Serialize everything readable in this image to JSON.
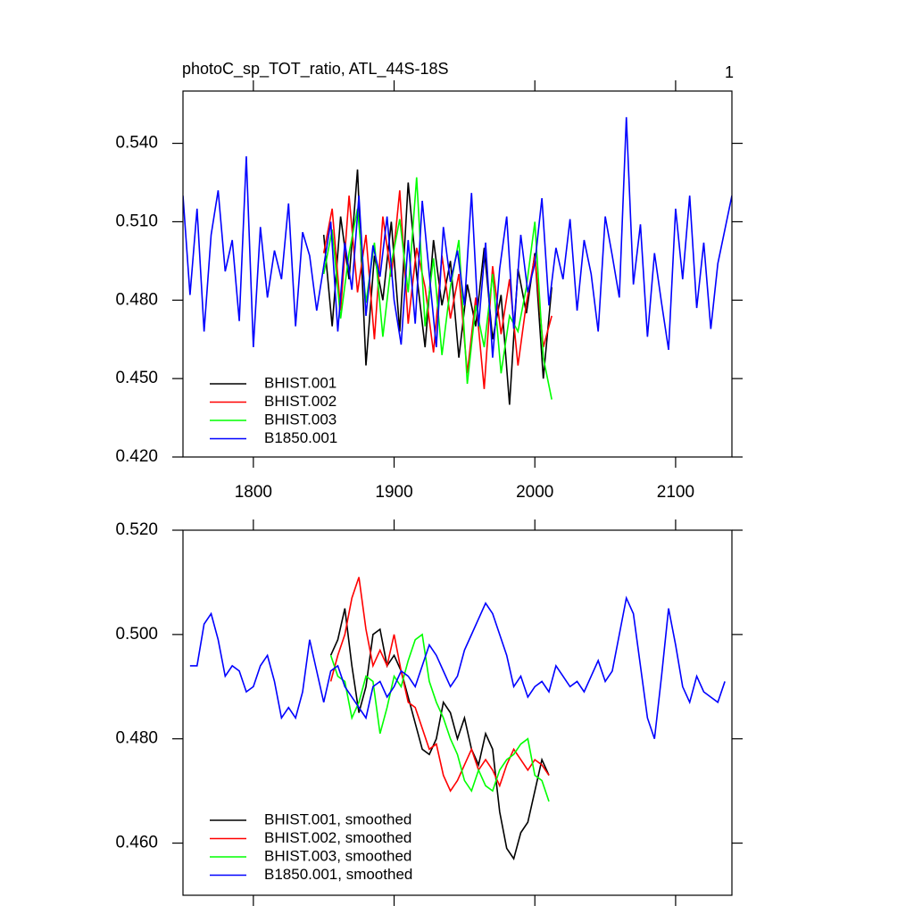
{
  "chart_data": [
    {
      "type": "line",
      "title": "photoC_sp_TOT_ratio, ATL_44S-18S",
      "corner_label": "1",
      "xlim": [
        1750,
        2140
      ],
      "xticks": [
        1800,
        1900,
        2000,
        2100
      ],
      "ylim": [
        0.42,
        0.56
      ],
      "yticks": [
        {
          "value": 0.42,
          "label": "0.420"
        },
        {
          "value": 0.45,
          "label": "0.450"
        },
        {
          "value": 0.48,
          "label": "0.480"
        },
        {
          "value": 0.51,
          "label": "0.510"
        },
        {
          "value": 0.54,
          "label": "0.540"
        }
      ],
      "legend": "lower left",
      "series": [
        {
          "name": "BHIST.001",
          "color": "#000000",
          "x": [
            1850,
            1856,
            1862,
            1868,
            1874,
            1880,
            1886,
            1892,
            1898,
            1904,
            1910,
            1916,
            1922,
            1928,
            1934,
            1940,
            1946,
            1952,
            1958,
            1964,
            1970,
            1976,
            1982,
            1988,
            1994,
            2000,
            2006,
            2012
          ],
          "values": [
            0.505,
            0.47,
            0.512,
            0.488,
            0.53,
            0.455,
            0.497,
            0.48,
            0.51,
            0.468,
            0.525,
            0.49,
            0.462,
            0.503,
            0.478,
            0.495,
            0.458,
            0.486,
            0.47,
            0.5,
            0.465,
            0.482,
            0.44,
            0.492,
            0.475,
            0.498,
            0.45,
            0.485
          ]
        },
        {
          "name": "BHIST.002",
          "color": "#ff0000",
          "x": [
            1850,
            1856,
            1862,
            1868,
            1874,
            1880,
            1886,
            1892,
            1898,
            1904,
            1910,
            1916,
            1922,
            1928,
            1934,
            1940,
            1946,
            1952,
            1958,
            1964,
            1970,
            1976,
            1982,
            1988,
            1994,
            2000,
            2006,
            2012
          ],
          "values": [
            0.498,
            0.515,
            0.476,
            0.52,
            0.483,
            0.505,
            0.465,
            0.512,
            0.489,
            0.522,
            0.471,
            0.5,
            0.485,
            0.46,
            0.497,
            0.473,
            0.49,
            0.452,
            0.481,
            0.446,
            0.493,
            0.467,
            0.488,
            0.455,
            0.479,
            0.497,
            0.462,
            0.474
          ]
        },
        {
          "name": "BHIST.003",
          "color": "#00ff00",
          "x": [
            1850,
            1856,
            1862,
            1868,
            1874,
            1880,
            1886,
            1892,
            1898,
            1904,
            1910,
            1916,
            1922,
            1928,
            1934,
            1940,
            1946,
            1952,
            1958,
            1964,
            1970,
            1976,
            1982,
            1988,
            1994,
            2000,
            2006,
            2012
          ],
          "values": [
            0.49,
            0.507,
            0.473,
            0.498,
            0.515,
            0.479,
            0.502,
            0.466,
            0.494,
            0.511,
            0.483,
            0.527,
            0.47,
            0.496,
            0.459,
            0.485,
            0.503,
            0.448,
            0.478,
            0.462,
            0.49,
            0.452,
            0.474,
            0.468,
            0.485,
            0.51,
            0.458,
            0.442
          ]
        },
        {
          "name": "B1850.001",
          "color": "#0000ff",
          "x": [
            1750,
            1755,
            1760,
            1765,
            1770,
            1775,
            1780,
            1785,
            1790,
            1795,
            1800,
            1805,
            1810,
            1815,
            1820,
            1825,
            1830,
            1835,
            1840,
            1845,
            1850,
            1855,
            1860,
            1865,
            1870,
            1875,
            1880,
            1885,
            1890,
            1895,
            1900,
            1905,
            1910,
            1915,
            1920,
            1925,
            1930,
            1935,
            1940,
            1945,
            1950,
            1955,
            1960,
            1965,
            1970,
            1975,
            1980,
            1985,
            1990,
            1995,
            2000,
            2005,
            2010,
            2015,
            2020,
            2025,
            2030,
            2035,
            2040,
            2045,
            2050,
            2055,
            2060,
            2065,
            2070,
            2075,
            2080,
            2085,
            2090,
            2095,
            2100,
            2105,
            2110,
            2115,
            2120,
            2125,
            2130,
            2135,
            2140
          ],
          "values": [
            0.52,
            0.482,
            0.515,
            0.468,
            0.505,
            0.522,
            0.491,
            0.503,
            0.472,
            0.535,
            0.462,
            0.508,
            0.481,
            0.499,
            0.488,
            0.517,
            0.47,
            0.506,
            0.497,
            0.476,
            0.493,
            0.51,
            0.468,
            0.502,
            0.484,
            0.52,
            0.474,
            0.501,
            0.489,
            0.512,
            0.48,
            0.463,
            0.503,
            0.471,
            0.518,
            0.49,
            0.462,
            0.508,
            0.487,
            0.499,
            0.478,
            0.521,
            0.47,
            0.502,
            0.458,
            0.492,
            0.512,
            0.469,
            0.505,
            0.483,
            0.494,
            0.519,
            0.478,
            0.5,
            0.488,
            0.511,
            0.476,
            0.503,
            0.49,
            0.468,
            0.512,
            0.497,
            0.481,
            0.55,
            0.486,
            0.509,
            0.466,
            0.498,
            0.479,
            0.461,
            0.515,
            0.488,
            0.52,
            0.477,
            0.502,
            0.469,
            0.494,
            0.507,
            0.52
          ]
        }
      ]
    },
    {
      "type": "line",
      "xlim": [
        1750,
        2140
      ],
      "xticks": [
        1800,
        1900,
        2000,
        2100
      ],
      "ylim": [
        0.45,
        0.52
      ],
      "yticks": [
        {
          "value": 0.46,
          "label": "0.460"
        },
        {
          "value": 0.48,
          "label": "0.480"
        },
        {
          "value": 0.5,
          "label": "0.500"
        },
        {
          "value": 0.52,
          "label": "0.520"
        }
      ],
      "legend": "lower left",
      "series": [
        {
          "name": "BHIST.001, smoothed",
          "color": "#000000",
          "x": [
            1855,
            1860,
            1865,
            1870,
            1875,
            1880,
            1885,
            1890,
            1895,
            1900,
            1905,
            1910,
            1915,
            1920,
            1925,
            1930,
            1935,
            1940,
            1945,
            1950,
            1955,
            1960,
            1965,
            1970,
            1975,
            1980,
            1985,
            1990,
            1995,
            2000,
            2005,
            2010
          ],
          "values": [
            0.496,
            0.499,
            0.505,
            0.494,
            0.485,
            0.49,
            0.5,
            0.501,
            0.494,
            0.496,
            0.493,
            0.488,
            0.483,
            0.478,
            0.477,
            0.48,
            0.487,
            0.485,
            0.48,
            0.484,
            0.478,
            0.475,
            0.481,
            0.478,
            0.466,
            0.459,
            0.457,
            0.462,
            0.464,
            0.47,
            0.476,
            0.473
          ]
        },
        {
          "name": "BHIST.002, smoothed",
          "color": "#ff0000",
          "x": [
            1855,
            1860,
            1865,
            1870,
            1875,
            1880,
            1885,
            1890,
            1895,
            1900,
            1905,
            1910,
            1915,
            1920,
            1925,
            1930,
            1935,
            1940,
            1945,
            1950,
            1955,
            1960,
            1965,
            1970,
            1975,
            1980,
            1985,
            1990,
            1995,
            2000,
            2005,
            2010
          ],
          "values": [
            0.491,
            0.496,
            0.5,
            0.507,
            0.511,
            0.501,
            0.494,
            0.497,
            0.494,
            0.5,
            0.493,
            0.487,
            0.486,
            0.482,
            0.478,
            0.479,
            0.473,
            0.47,
            0.472,
            0.475,
            0.478,
            0.474,
            0.476,
            0.474,
            0.471,
            0.475,
            0.478,
            0.476,
            0.474,
            0.476,
            0.475,
            0.473
          ]
        },
        {
          "name": "BHIST.003, smoothed",
          "color": "#00ff00",
          "x": [
            1855,
            1860,
            1865,
            1870,
            1875,
            1880,
            1885,
            1890,
            1895,
            1900,
            1905,
            1910,
            1915,
            1920,
            1925,
            1930,
            1935,
            1940,
            1945,
            1950,
            1955,
            1960,
            1965,
            1970,
            1975,
            1980,
            1985,
            1990,
            1995,
            2000,
            2005,
            2010
          ],
          "values": [
            0.496,
            0.492,
            0.491,
            0.484,
            0.487,
            0.492,
            0.491,
            0.481,
            0.486,
            0.492,
            0.49,
            0.495,
            0.499,
            0.5,
            0.491,
            0.487,
            0.484,
            0.48,
            0.477,
            0.472,
            0.47,
            0.474,
            0.471,
            0.47,
            0.474,
            0.476,
            0.477,
            0.479,
            0.48,
            0.473,
            0.472,
            0.468
          ]
        },
        {
          "name": "B1850.001, smoothed",
          "color": "#0000ff",
          "x": [
            1755,
            1760,
            1765,
            1770,
            1775,
            1780,
            1785,
            1790,
            1795,
            1800,
            1805,
            1810,
            1815,
            1820,
            1825,
            1830,
            1835,
            1840,
            1845,
            1850,
            1855,
            1860,
            1865,
            1870,
            1875,
            1880,
            1885,
            1890,
            1895,
            1900,
            1905,
            1910,
            1915,
            1920,
            1925,
            1930,
            1935,
            1940,
            1945,
            1950,
            1955,
            1960,
            1965,
            1970,
            1975,
            1980,
            1985,
            1990,
            1995,
            2000,
            2005,
            2010,
            2015,
            2020,
            2025,
            2030,
            2035,
            2040,
            2045,
            2050,
            2055,
            2060,
            2065,
            2070,
            2075,
            2080,
            2085,
            2090,
            2095,
            2100,
            2105,
            2110,
            2115,
            2120,
            2125,
            2130,
            2135
          ],
          "values": [
            0.494,
            0.494,
            0.502,
            0.504,
            0.499,
            0.492,
            0.494,
            0.493,
            0.489,
            0.49,
            0.494,
            0.496,
            0.491,
            0.484,
            0.486,
            0.484,
            0.489,
            0.499,
            0.493,
            0.487,
            0.493,
            0.494,
            0.49,
            0.488,
            0.486,
            0.484,
            0.49,
            0.491,
            0.488,
            0.49,
            0.493,
            0.492,
            0.49,
            0.494,
            0.498,
            0.496,
            0.493,
            0.49,
            0.492,
            0.497,
            0.5,
            0.503,
            0.506,
            0.504,
            0.5,
            0.496,
            0.49,
            0.492,
            0.488,
            0.49,
            0.491,
            0.489,
            0.494,
            0.492,
            0.49,
            0.491,
            0.489,
            0.492,
            0.495,
            0.491,
            0.493,
            0.5,
            0.507,
            0.504,
            0.494,
            0.484,
            0.48,
            0.492,
            0.505,
            0.498,
            0.49,
            0.487,
            0.492,
            0.489,
            0.488,
            0.487,
            0.491
          ]
        }
      ]
    }
  ]
}
